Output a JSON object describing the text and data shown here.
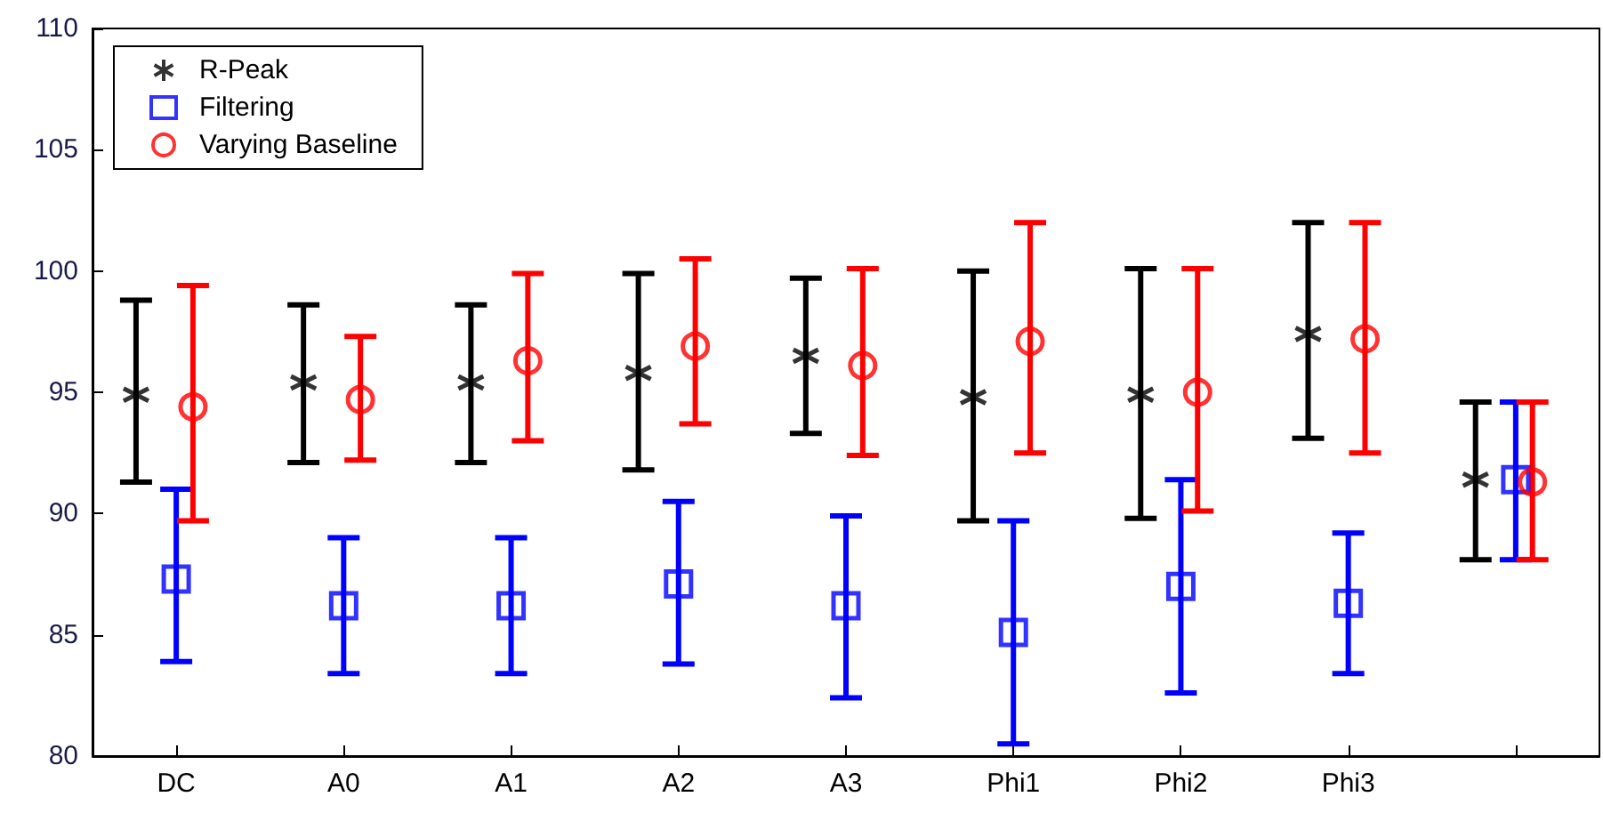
{
  "chart_data": {
    "type": "scatter",
    "categories": [
      "DC",
      "A0",
      "A1",
      "A2",
      "A3",
      "Phi1",
      "Phi2",
      "Phi3",
      null
    ],
    "ylim": [
      80,
      110
    ],
    "yticks": [
      80,
      85,
      90,
      95,
      100,
      105,
      110
    ],
    "grid": false,
    "legend": "top left",
    "series": [
      {
        "name": "R-Peak",
        "color": "#000000",
        "marker": "cross",
        "values": [
          94.9,
          95.4,
          95.4,
          95.8,
          96.5,
          94.8,
          94.9,
          97.4,
          91.4
        ],
        "errors": [
          [
            91.3,
            98.8
          ],
          [
            92.1,
            98.6
          ],
          [
            92.1,
            98.6
          ],
          [
            91.8,
            99.9
          ],
          [
            93.3,
            99.7
          ],
          [
            89.7,
            100.0
          ],
          [
            89.8,
            100.1
          ],
          [
            93.1,
            102.0
          ],
          [
            88.1,
            94.6
          ]
        ]
      },
      {
        "name": "Filtering",
        "color": "#0000ff",
        "marker": "square",
        "values": [
          87.3,
          86.2,
          86.2,
          87.1,
          86.2,
          85.1,
          87.0,
          86.3,
          91.4
        ],
        "errors": [
          [
            83.9,
            91.0
          ],
          [
            83.4,
            89.0
          ],
          [
            83.4,
            89.0
          ],
          [
            83.8,
            90.5
          ],
          [
            82.4,
            89.9
          ],
          [
            80.5,
            89.7
          ],
          [
            82.6,
            91.4
          ],
          [
            83.4,
            89.2
          ],
          [
            88.1,
            94.6
          ]
        ]
      },
      {
        "name": "Varying Baseline",
        "color": "#ff0000",
        "marker": "circle",
        "values": [
          94.4,
          94.7,
          96.3,
          96.9,
          96.1,
          97.1,
          95.0,
          97.2,
          91.3
        ],
        "errors": [
          [
            89.7,
            99.4
          ],
          [
            92.2,
            97.3
          ],
          [
            93.0,
            99.9
          ],
          [
            93.7,
            100.5
          ],
          [
            92.4,
            100.1
          ],
          [
            92.5,
            102.0
          ],
          [
            90.1,
            100.1
          ],
          [
            92.5,
            102.0
          ],
          [
            88.1,
            94.6
          ]
        ]
      }
    ]
  }
}
